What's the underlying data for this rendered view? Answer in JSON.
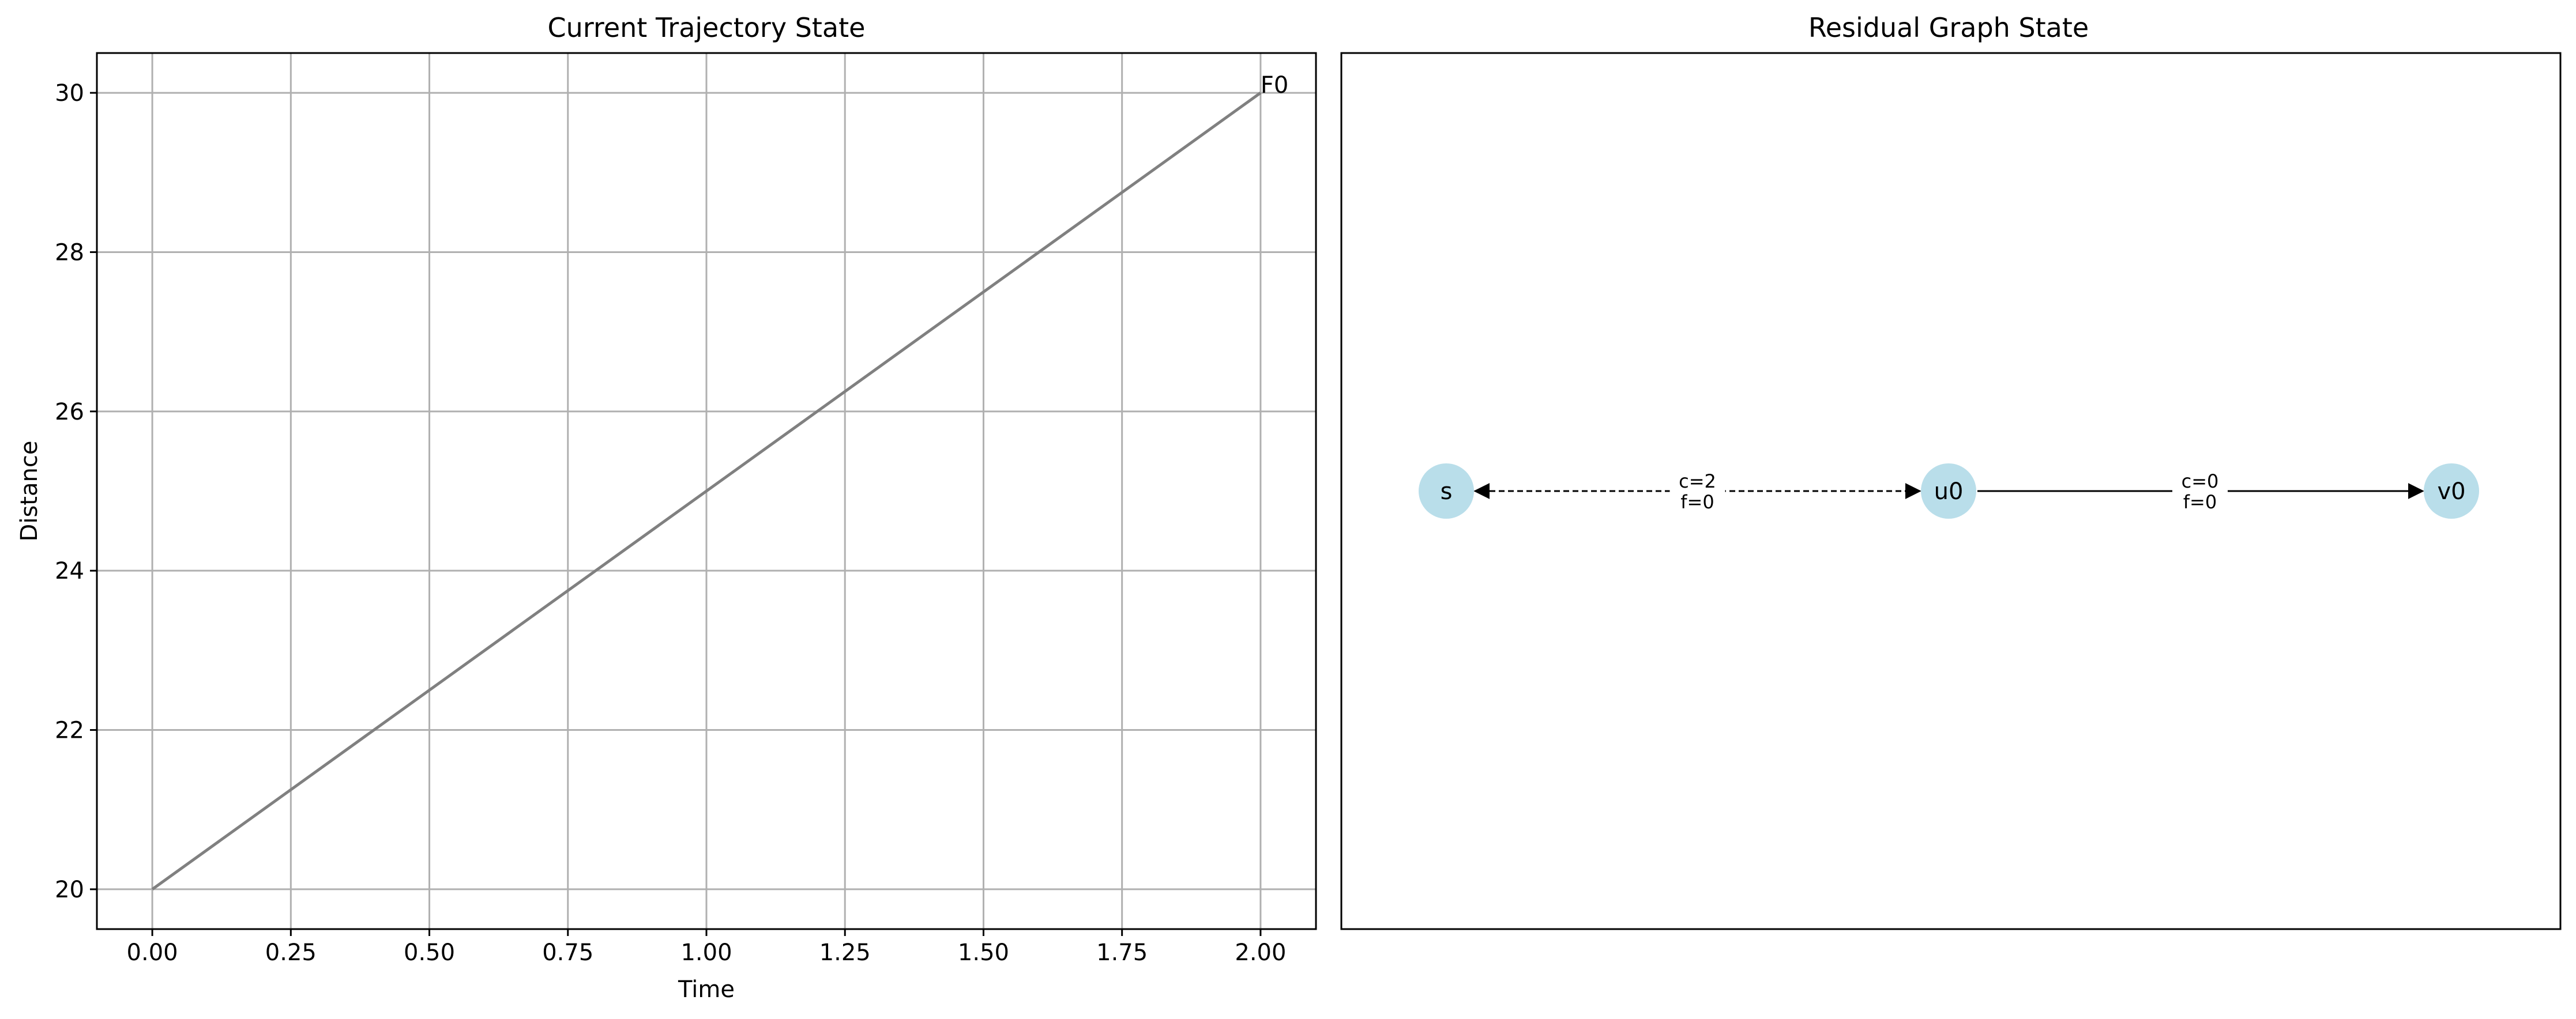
{
  "chart_data": [
    {
      "type": "line",
      "title": "Current Trajectory State",
      "xlabel": "Time",
      "ylabel": "Distance",
      "xlim": [
        -0.1,
        2.1
      ],
      "ylim": [
        19.5,
        30.5
      ],
      "xticks": [
        "0.00",
        "0.25",
        "0.50",
        "0.75",
        "1.00",
        "1.25",
        "1.50",
        "1.75",
        "2.00"
      ],
      "yticks": [
        "20",
        "22",
        "24",
        "26",
        "28",
        "30"
      ],
      "grid": true,
      "series": [
        {
          "name": "F0",
          "x": [
            0.0,
            2.0
          ],
          "y": [
            20,
            30
          ],
          "color": "#808080"
        }
      ],
      "annotations": [
        {
          "text": "F0",
          "x": 2.0,
          "y": 30
        }
      ]
    },
    {
      "type": "diagram",
      "title": "Residual Graph State",
      "node_color": "#add8e6",
      "nodes": [
        {
          "id": "s",
          "label": "s"
        },
        {
          "id": "u0",
          "label": "u0"
        },
        {
          "id": "v0",
          "label": "v0"
        }
      ],
      "edges": [
        {
          "from": "u0",
          "to": "s",
          "style": "dashed",
          "bidirectional": true,
          "label_c": "c=2",
          "label_f": "f=0"
        },
        {
          "from": "u0",
          "to": "v0",
          "style": "solid",
          "bidirectional": false,
          "label_c": "c=0",
          "label_f": "f=0"
        }
      ]
    }
  ]
}
